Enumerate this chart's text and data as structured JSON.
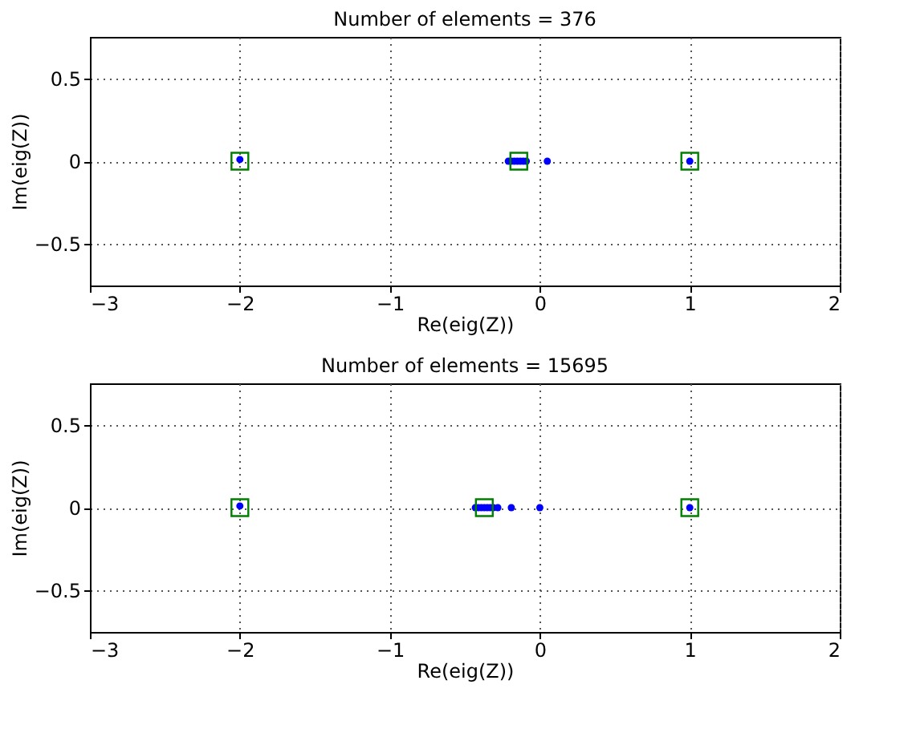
{
  "chart_data": [
    {
      "type": "scatter",
      "title": "Number of elements = 376",
      "xlabel": "Re(eig(Z))",
      "ylabel": "Im(eig(Z))",
      "xlim": [
        -3,
        2
      ],
      "xticks": [
        {
          "value": -3,
          "label": "−3"
        },
        {
          "value": -2,
          "label": "−2"
        },
        {
          "value": -1,
          "label": "−1"
        },
        0,
        1,
        2
      ],
      "ylim": [
        -0.75,
        0.75
      ],
      "yticks": [
        {
          "value": -0.5,
          "label": "−0.5"
        },
        0,
        0.5
      ],
      "grid": true,
      "series": [
        {
          "color": "#0000ff",
          "marker": "circle",
          "x": [
            -2,
            -0.21,
            -0.19,
            -0.17,
            -0.15,
            -0.13,
            -0.11,
            -0.09,
            0.05,
            1
          ],
          "values": [
            0.01,
            0,
            0,
            0,
            0,
            0,
            0,
            0,
            0,
            0
          ]
        },
        {
          "color": "#008000",
          "marker": "square",
          "x": [
            -2,
            -0.14,
            1
          ],
          "values": [
            0,
            0,
            0
          ]
        }
      ]
    },
    {
      "type": "scatter",
      "title": "Number of elements = 15695",
      "xlabel": "Re(eig(Z))",
      "ylabel": "Im(eig(Z))",
      "xlim": [
        -3,
        2
      ],
      "xticks": [
        {
          "value": -3,
          "label": "−3"
        },
        {
          "value": -2,
          "label": "−2"
        },
        {
          "value": -1,
          "label": "−1"
        },
        0,
        1,
        2
      ],
      "ylim": [
        -0.75,
        0.75
      ],
      "yticks": [
        {
          "value": -0.5,
          "label": "−0.5"
        },
        0,
        0.5
      ],
      "grid": true,
      "series": [
        {
          "color": "#0000ff",
          "marker": "circle",
          "x": [
            -2,
            -0.43,
            -0.41,
            -0.39,
            -0.37,
            -0.35,
            -0.33,
            -0.31,
            -0.28,
            -0.19,
            0,
            1
          ],
          "values": [
            0.01,
            0,
            0,
            0,
            0,
            0,
            0,
            0,
            0,
            0,
            0,
            0
          ]
        },
        {
          "color": "#008000",
          "marker": "square",
          "x": [
            -2,
            -0.37,
            1
          ],
          "values": [
            0,
            0,
            0
          ]
        }
      ]
    }
  ]
}
